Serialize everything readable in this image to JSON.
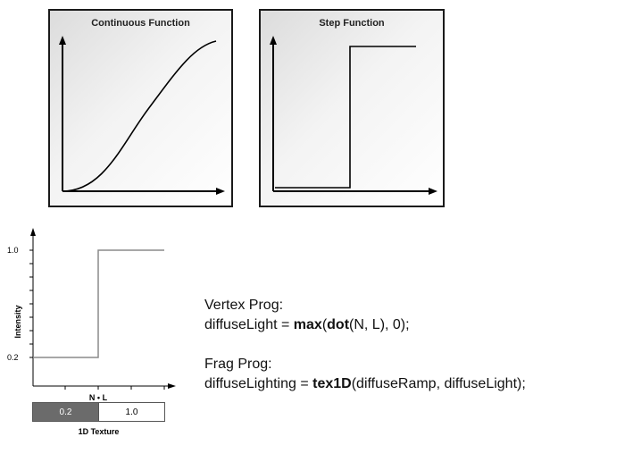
{
  "panels": {
    "continuous": {
      "title": "Continuous Function"
    },
    "step": {
      "title": "Step Function"
    }
  },
  "intensity_chart": {
    "ylabel": "Intensity",
    "xlabel": "N • L",
    "ytick_top": "1.0",
    "ytick_bottom": "0.2"
  },
  "texture": {
    "cell_left": "0.2",
    "cell_right": "1.0",
    "caption": "1D Texture",
    "colors": {
      "dark": "#6b6b6b",
      "light": "#ffffff"
    }
  },
  "code": {
    "vertex_header": "Vertex Prog:",
    "vertex_lhs": "diffuseLight = ",
    "vertex_fn1": "max",
    "vertex_open": "(",
    "vertex_fn2": "dot",
    "vertex_args": "(N, L), 0);",
    "frag_header": "Frag Prog:",
    "frag_lhs": "diffuseLighting = ",
    "frag_fn": "tex1D",
    "frag_args": "(diffuseRamp, diffuseLight);"
  }
}
